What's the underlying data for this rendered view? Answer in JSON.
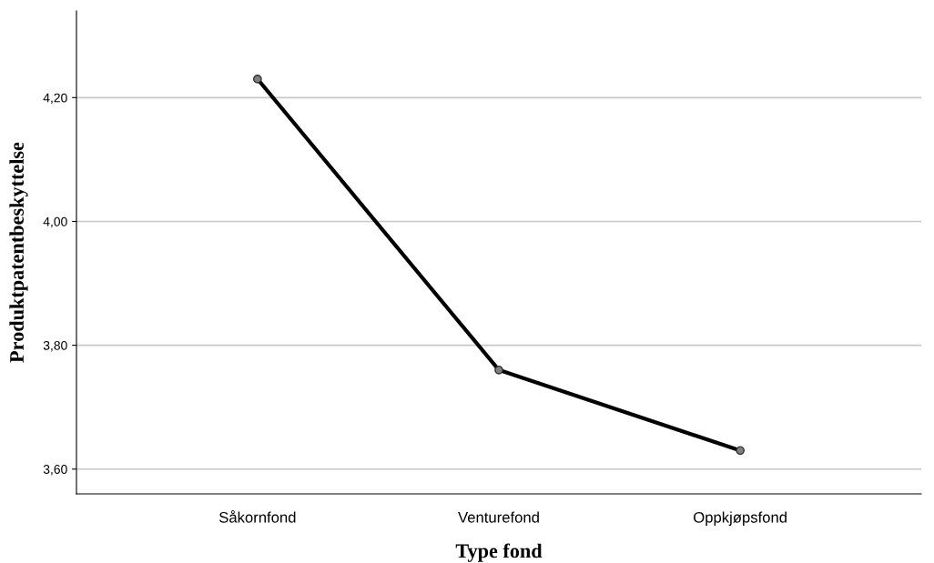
{
  "chart_data": {
    "type": "line",
    "xlabel": "Type fond",
    "ylabel": "Produktpatentbeskyttelse",
    "categories": [
      "Såkornfond",
      "Venturefond",
      "Oppkjøpsfond"
    ],
    "series": [
      {
        "color": "#000000",
        "values": [
          4.23,
          3.76,
          3.63
        ]
      }
    ],
    "ylim": [
      3.56,
      4.34
    ],
    "yticks": [
      {
        "value": 3.6,
        "label": "3,60"
      },
      {
        "value": 3.8,
        "label": "3,80"
      },
      {
        "value": 4.0,
        "label": "4,00"
      },
      {
        "value": 4.2,
        "label": "4,20"
      }
    ],
    "grid": "y",
    "marker": "circle",
    "line_style": "solid"
  }
}
